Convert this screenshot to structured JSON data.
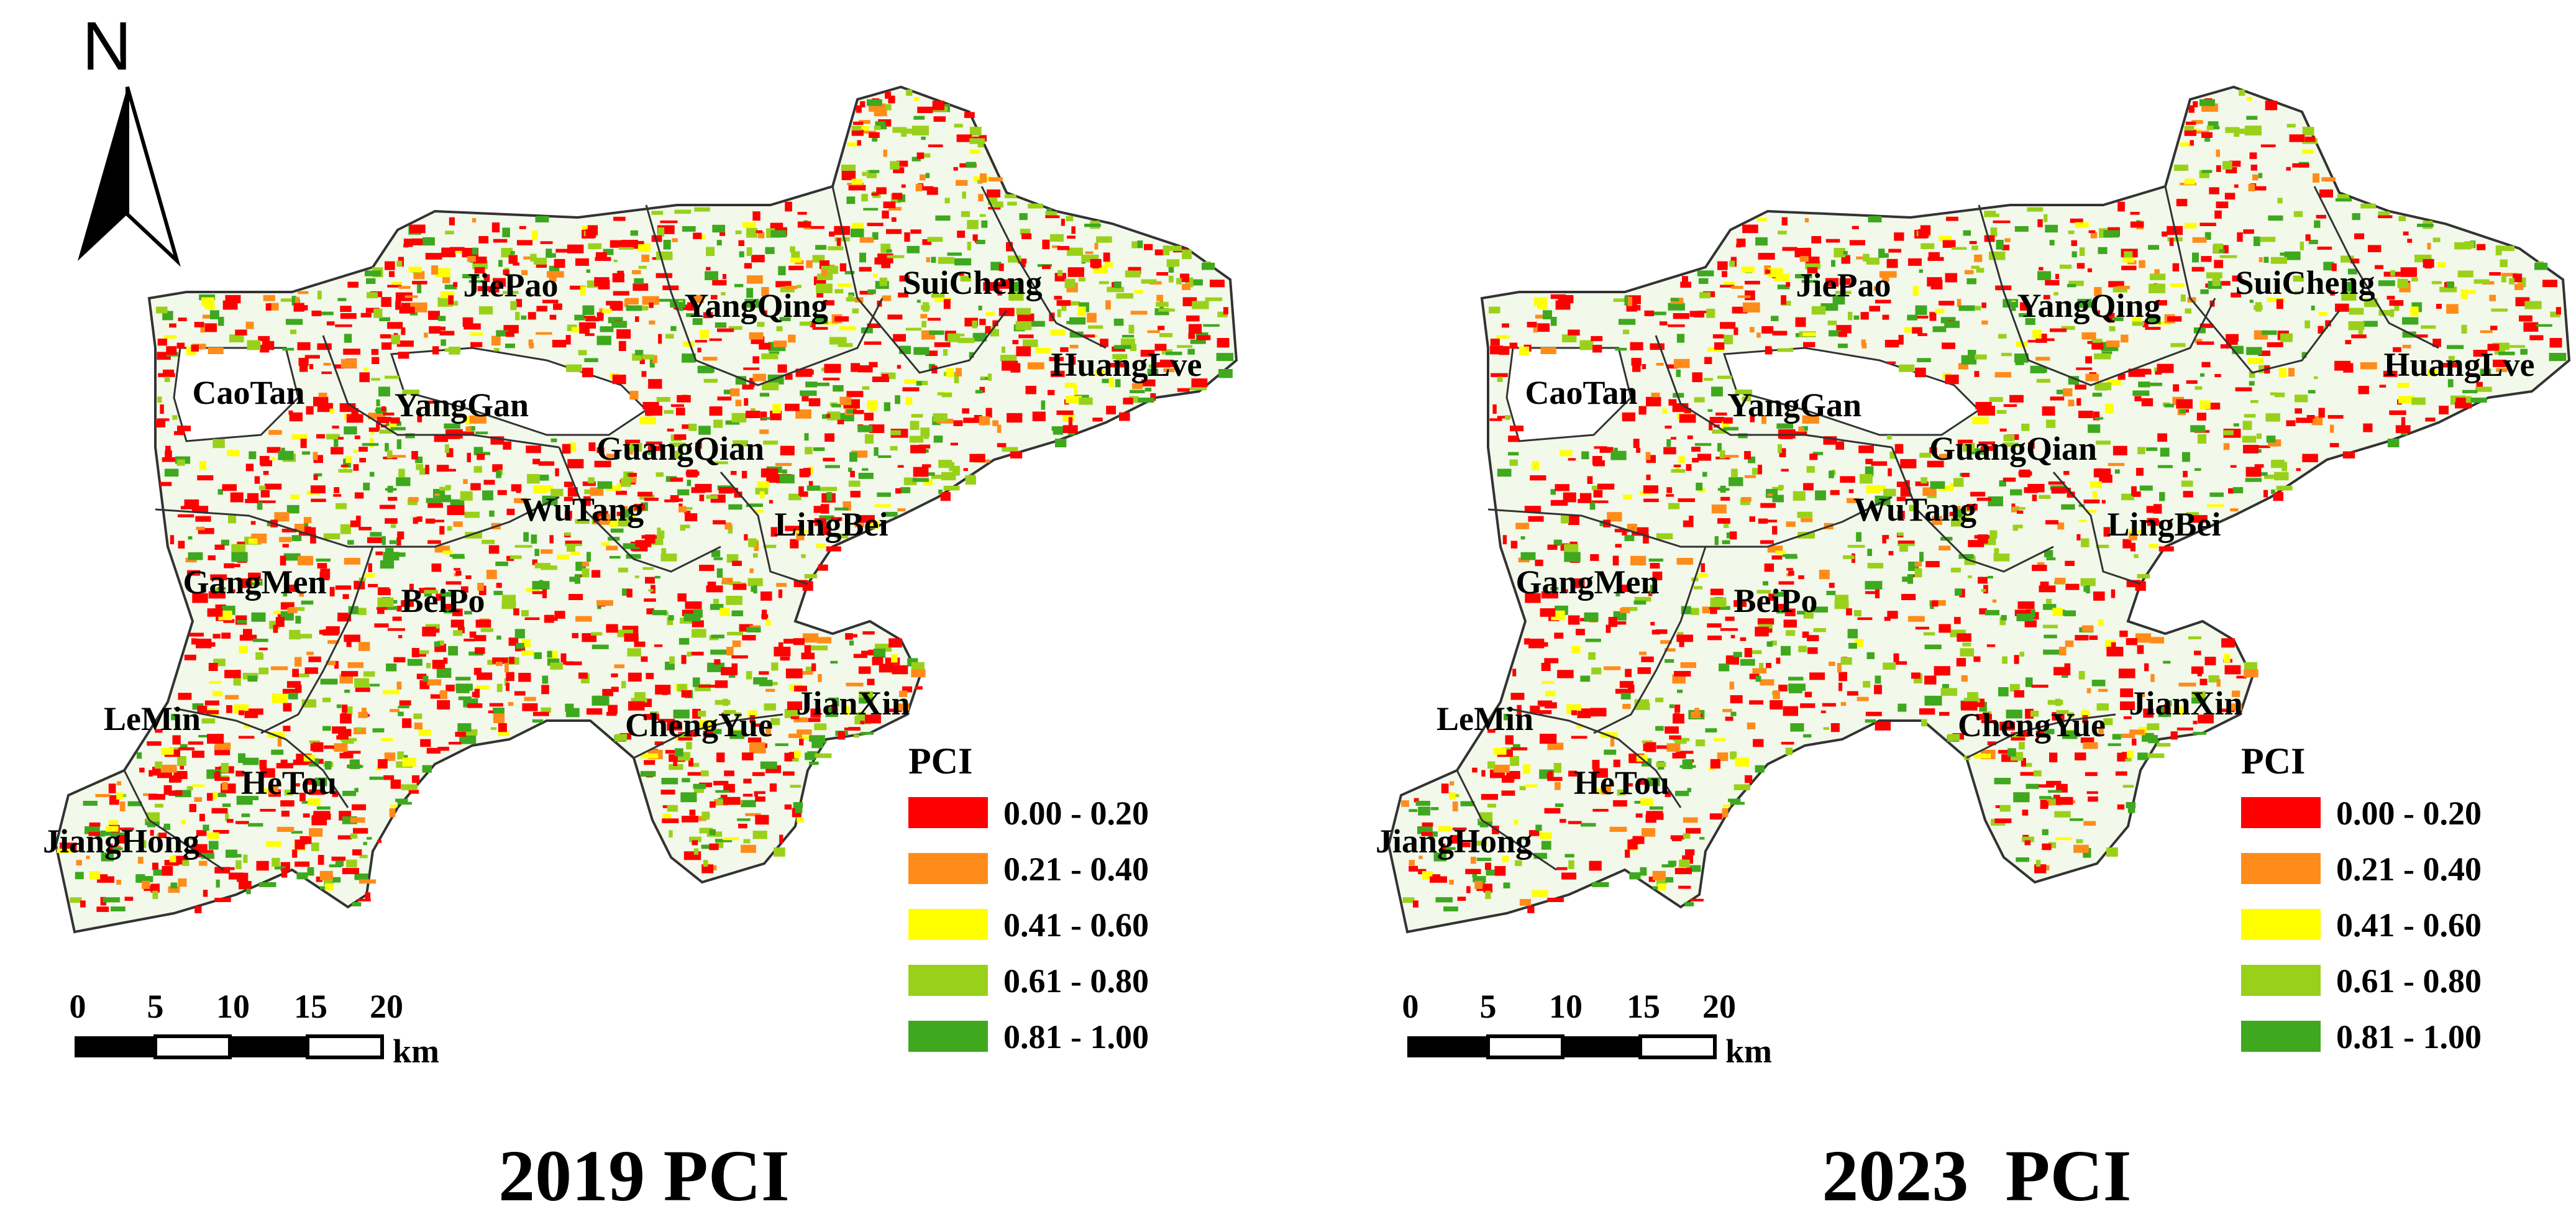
{
  "north_arrow": {
    "label": "N"
  },
  "maps": [
    {
      "title": "2019 PCI",
      "year": 2019,
      "towns": [
        "JiePao",
        "YangQing",
        "SuiCheng",
        "HuangLve",
        "CaoTan",
        "YangGan",
        "GuangQian",
        "WuTang",
        "LingBei",
        "GangMen",
        "BeiPo",
        "ChengYue",
        "JianXin",
        "LeMin",
        "HeTou",
        "JiangHong"
      ]
    },
    {
      "title": "2023  PCI",
      "year": 2023,
      "towns": [
        "JiePao",
        "YangQing",
        "SuiCheng",
        "HuangLve",
        "CaoTan",
        "YangGan",
        "GuangQian",
        "WuTang",
        "LingBei",
        "GangMen",
        "BeiPo",
        "ChengYue",
        "JianXin",
        "LeMin",
        "HeTou",
        "JiangHong"
      ]
    }
  ],
  "legend": {
    "title": "PCI",
    "classes": [
      {
        "label": "0.00 - 0.20",
        "color": "#ff0000"
      },
      {
        "label": "0.21 - 0.40",
        "color": "#ff8c1a"
      },
      {
        "label": "0.41 - 0.60",
        "color": "#ffff00"
      },
      {
        "label": "0.61 - 0.80",
        "color": "#99d11a"
      },
      {
        "label": "0.81 - 1.00",
        "color": "#3ea81f"
      }
    ]
  },
  "scale_bar": {
    "ticks": [
      "0",
      "5",
      "10",
      "15",
      "20"
    ],
    "unit": "km"
  }
}
